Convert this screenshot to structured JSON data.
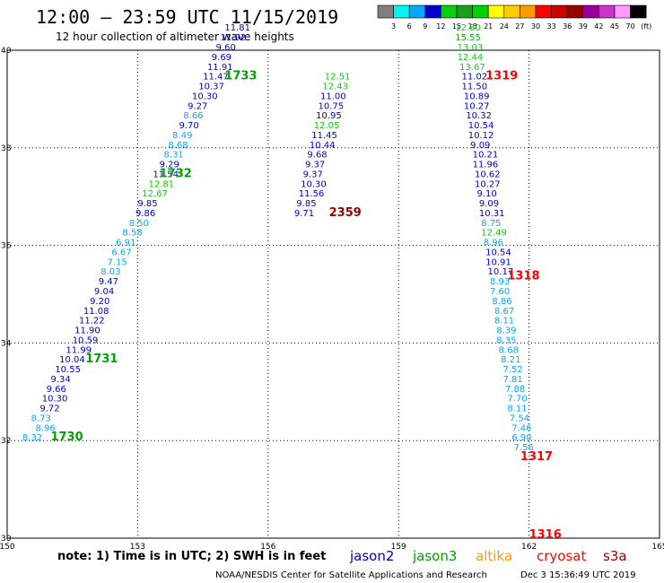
{
  "header": {
    "title": "12:00 – 23:59 UTC 11/15/2019",
    "subtitle": "12 hour collection of altimeter wave heights"
  },
  "legend": {
    "colors": [
      "#7f7f7f",
      "#00f4f4",
      "#00aaff",
      "#0000cd",
      "#0dcd0d",
      "#18a018",
      "#00d000",
      "#ffff00",
      "#ffcc00",
      "#ff9900",
      "#ff0000",
      "#cc0000",
      "#990000",
      "#990099",
      "#cc33cc",
      "#ff99ff",
      "#000000"
    ],
    "labels": [
      "3",
      "6",
      "9",
      "12",
      "15",
      "18",
      "21",
      "24",
      "27",
      "30",
      "33",
      "36",
      "39",
      "42",
      "45",
      "70",
      "(ft)"
    ]
  },
  "footer": {
    "note": "note: 1) Time is in UTC; 2) SWH is in feet",
    "credit": "NOAA/NESDIS Center for Satellite Applications and Research",
    "timestamp": "Dec  3 15:36:49 UTC 2019"
  },
  "satellites": [
    {
      "name": "jason2",
      "color": "#0000cd"
    },
    {
      "name": "jason3",
      "color": "#00a000"
    },
    {
      "name": "altika",
      "color": "#ff9900"
    },
    {
      "name": "cryosat",
      "color": "#ff0000"
    },
    {
      "name": "s3a",
      "color": "#990000"
    }
  ],
  "chart_data": {
    "type": "scatter",
    "xlim": [
      150,
      165
    ],
    "ylim": [
      30,
      40
    ],
    "xticks": [
      "150",
      "153",
      "156",
      "159",
      "162",
      "165"
    ],
    "yticks": [
      "30",
      "32",
      "34",
      "36",
      "38",
      "40"
    ],
    "grid": true,
    "height_colors": {
      "9": "#0000cd",
      "12": "#00aaff",
      "15": "#0dcd0d",
      "18": "#18a018",
      "21": "#00d000"
    },
    "time_labels": [
      {
        "text": "1730",
        "lon": 151.0,
        "lat": 32.0,
        "color": "#00a000"
      },
      {
        "text": "1731",
        "lon": 151.8,
        "lat": 33.6,
        "color": "#00a000"
      },
      {
        "text": "1732",
        "lon": 153.5,
        "lat": 37.4,
        "color": "#00a000"
      },
      {
        "text": "1733",
        "lon": 155.0,
        "lat": 39.4,
        "color": "#00a000"
      },
      {
        "text": "2359",
        "lon": 157.4,
        "lat": 36.6,
        "color": "#990000"
      },
      {
        "text": "1319",
        "lon": 161.0,
        "lat": 39.4,
        "color": "#ff0000"
      },
      {
        "text": "1318",
        "lon": 161.5,
        "lat": 35.3,
        "color": "#ff0000"
      },
      {
        "text": "1317",
        "lon": 161.8,
        "lat": 31.6,
        "color": "#ff0000"
      },
      {
        "text": "1316",
        "lon": 162.0,
        "lat": 30.0,
        "color": "#ff0000"
      }
    ],
    "tracks": [
      {
        "time": "1730-1733",
        "points": [
          {
            "v": "8.32",
            "lon": 150.35,
            "lat": 32.0,
            "c": "12"
          },
          {
            "v": "8.96",
            "lon": 150.65,
            "lat": 32.2,
            "c": "12"
          },
          {
            "v": "8.73",
            "lon": 150.55,
            "lat": 32.4,
            "c": "12"
          },
          {
            "v": "9.72",
            "lon": 150.75,
            "lat": 32.6,
            "c": "9"
          },
          {
            "v": "10.30",
            "lon": 150.8,
            "lat": 32.8,
            "c": "9"
          },
          {
            "v": "9.66",
            "lon": 150.9,
            "lat": 33.0,
            "c": "9"
          },
          {
            "v": "9.34",
            "lon": 151.0,
            "lat": 33.2,
            "c": "9"
          },
          {
            "v": "10.55",
            "lon": 151.1,
            "lat": 33.4,
            "c": "9"
          },
          {
            "v": "10.04",
            "lon": 151.2,
            "lat": 33.6,
            "c": "9"
          },
          {
            "v": "11.99",
            "lon": 151.35,
            "lat": 33.8,
            "c": "9"
          },
          {
            "v": "10.59",
            "lon": 151.5,
            "lat": 34.0,
            "c": "9"
          },
          {
            "v": "11.90",
            "lon": 151.55,
            "lat": 34.2,
            "c": "9"
          },
          {
            "v": "11.22",
            "lon": 151.65,
            "lat": 34.4,
            "c": "9"
          },
          {
            "v": "11.08",
            "lon": 151.75,
            "lat": 34.6,
            "c": "9"
          },
          {
            "v": "9.20",
            "lon": 151.9,
            "lat": 34.8,
            "c": "9"
          },
          {
            "v": "9.04",
            "lon": 152.0,
            "lat": 35.0,
            "c": "9"
          },
          {
            "v": "9.47",
            "lon": 152.1,
            "lat": 35.2,
            "c": "9"
          },
          {
            "v": "8.03",
            "lon": 152.15,
            "lat": 35.4,
            "c": "12"
          },
          {
            "v": "7.15",
            "lon": 152.3,
            "lat": 35.6,
            "c": "12"
          },
          {
            "v": "6.67",
            "lon": 152.4,
            "lat": 35.8,
            "c": "12"
          },
          {
            "v": "6.91",
            "lon": 152.5,
            "lat": 36.0,
            "c": "12"
          },
          {
            "v": "8.58",
            "lon": 152.65,
            "lat": 36.2,
            "c": "12"
          },
          {
            "v": "8.50",
            "lon": 152.8,
            "lat": 36.4,
            "c": "12"
          },
          {
            "v": "9.86",
            "lon": 152.95,
            "lat": 36.6,
            "c": "9"
          },
          {
            "v": "9.85",
            "lon": 153.0,
            "lat": 36.8,
            "c": "9"
          },
          {
            "v": "12.67",
            "lon": 153.1,
            "lat": 37.0,
            "c": "15"
          },
          {
            "v": "12.81",
            "lon": 153.25,
            "lat": 37.2,
            "c": "15"
          },
          {
            "v": "11.54",
            "lon": 153.35,
            "lat": 37.4,
            "c": "9"
          },
          {
            "v": "9.29",
            "lon": 153.5,
            "lat": 37.6,
            "c": "9"
          },
          {
            "v": "8.31",
            "lon": 153.6,
            "lat": 37.8,
            "c": "12"
          },
          {
            "v": "8.68",
            "lon": 153.7,
            "lat": 38.0,
            "c": "12"
          },
          {
            "v": "8.49",
            "lon": 153.8,
            "lat": 38.2,
            "c": "12"
          },
          {
            "v": "9.70",
            "lon": 153.95,
            "lat": 38.4,
            "c": "9"
          },
          {
            "v": "8.66",
            "lon": 154.05,
            "lat": 38.6,
            "c": "12"
          },
          {
            "v": "9.27",
            "lon": 154.15,
            "lat": 38.8,
            "c": "9"
          },
          {
            "v": "10.30",
            "lon": 154.25,
            "lat": 39.0,
            "c": "9"
          },
          {
            "v": "10.37",
            "lon": 154.4,
            "lat": 39.2,
            "c": "9"
          },
          {
            "v": "11.47",
            "lon": 154.5,
            "lat": 39.4,
            "c": "9"
          },
          {
            "v": "11.91",
            "lon": 154.6,
            "lat": 39.6,
            "c": "9"
          },
          {
            "v": "9.69",
            "lon": 154.7,
            "lat": 39.8,
            "c": "9"
          },
          {
            "v": "9.60",
            "lon": 154.8,
            "lat": 40.0,
            "c": "9"
          },
          {
            "v": "11.92",
            "lon": 154.9,
            "lat": 40.2,
            "c": "9"
          },
          {
            "v": "11.81",
            "lon": 155.0,
            "lat": 40.4,
            "c": "9"
          }
        ]
      },
      {
        "time": "2359",
        "points": [
          {
            "v": "9.71",
            "lon": 156.6,
            "lat": 36.6,
            "c": "9"
          },
          {
            "v": "9.85",
            "lon": 156.65,
            "lat": 36.8,
            "c": "9"
          },
          {
            "v": "11.56",
            "lon": 156.7,
            "lat": 37.0,
            "c": "9"
          },
          {
            "v": "10.30",
            "lon": 156.75,
            "lat": 37.2,
            "c": "9"
          },
          {
            "v": "9.37",
            "lon": 156.8,
            "lat": 37.4,
            "c": "9"
          },
          {
            "v": "9.37",
            "lon": 156.85,
            "lat": 37.6,
            "c": "9"
          },
          {
            "v": "9.68",
            "lon": 156.9,
            "lat": 37.8,
            "c": "9"
          },
          {
            "v": "10.44",
            "lon": 156.95,
            "lat": 38.0,
            "c": "9"
          },
          {
            "v": "11.45",
            "lon": 157.0,
            "lat": 38.2,
            "c": "9"
          },
          {
            "v": "12.05",
            "lon": 157.05,
            "lat": 38.4,
            "c": "15"
          },
          {
            "v": "10.95",
            "lon": 157.1,
            "lat": 38.6,
            "c": "9"
          },
          {
            "v": "10.75",
            "lon": 157.15,
            "lat": 38.8,
            "c": "9"
          },
          {
            "v": "11.00",
            "lon": 157.2,
            "lat": 39.0,
            "c": "9"
          },
          {
            "v": "12.43",
            "lon": 157.25,
            "lat": 39.2,
            "c": "15"
          },
          {
            "v": "12.51",
            "lon": 157.3,
            "lat": 39.4,
            "c": "15"
          }
        ]
      },
      {
        "time": "1316-1319",
        "points": [
          {
            "v": "12.80",
            "lon": 160.3,
            "lat": 40.4,
            "c": "15"
          },
          {
            "v": "15.55",
            "lon": 160.3,
            "lat": 40.2,
            "c": "18"
          },
          {
            "v": "13.03",
            "lon": 160.35,
            "lat": 40.0,
            "c": "15"
          },
          {
            "v": "12.44",
            "lon": 160.35,
            "lat": 39.8,
            "c": "15"
          },
          {
            "v": "13.67",
            "lon": 160.4,
            "lat": 39.6,
            "c": "15"
          },
          {
            "v": "11.02",
            "lon": 160.45,
            "lat": 39.4,
            "c": "9"
          },
          {
            "v": "11.50",
            "lon": 160.45,
            "lat": 39.2,
            "c": "9"
          },
          {
            "v": "10.89",
            "lon": 160.5,
            "lat": 39.0,
            "c": "9"
          },
          {
            "v": "10.27",
            "lon": 160.5,
            "lat": 38.8,
            "c": "9"
          },
          {
            "v": "10.32",
            "lon": 160.55,
            "lat": 38.6,
            "c": "9"
          },
          {
            "v": "10.54",
            "lon": 160.6,
            "lat": 38.4,
            "c": "9"
          },
          {
            "v": "10.12",
            "lon": 160.6,
            "lat": 38.2,
            "c": "9"
          },
          {
            "v": "9.09",
            "lon": 160.65,
            "lat": 38.0,
            "c": "9"
          },
          {
            "v": "10.21",
            "lon": 160.7,
            "lat": 37.8,
            "c": "9"
          },
          {
            "v": "11.96",
            "lon": 160.7,
            "lat": 37.6,
            "c": "9"
          },
          {
            "v": "10.62",
            "lon": 160.75,
            "lat": 37.4,
            "c": "9"
          },
          {
            "v": "10.27",
            "lon": 160.75,
            "lat": 37.2,
            "c": "9"
          },
          {
            "v": "9.10",
            "lon": 160.8,
            "lat": 37.0,
            "c": "9"
          },
          {
            "v": "9.09",
            "lon": 160.85,
            "lat": 36.8,
            "c": "9"
          },
          {
            "v": "10.31",
            "lon": 160.85,
            "lat": 36.6,
            "c": "9"
          },
          {
            "v": "8.75",
            "lon": 160.9,
            "lat": 36.4,
            "c": "12"
          },
          {
            "v": "12.49",
            "lon": 160.9,
            "lat": 36.2,
            "c": "15"
          },
          {
            "v": "8.96",
            "lon": 160.95,
            "lat": 36.0,
            "c": "12"
          },
          {
            "v": "10.54",
            "lon": 161.0,
            "lat": 35.8,
            "c": "9"
          },
          {
            "v": "10.91",
            "lon": 161.0,
            "lat": 35.6,
            "c": "9"
          },
          {
            "v": "10.17",
            "lon": 161.05,
            "lat": 35.4,
            "c": "9"
          },
          {
            "v": "8.93",
            "lon": 161.1,
            "lat": 35.2,
            "c": "12"
          },
          {
            "v": "7.60",
            "lon": 161.1,
            "lat": 35.0,
            "c": "12"
          },
          {
            "v": "8.86",
            "lon": 161.15,
            "lat": 34.8,
            "c": "12"
          },
          {
            "v": "8.67",
            "lon": 161.2,
            "lat": 34.6,
            "c": "12"
          },
          {
            "v": "8.11",
            "lon": 161.2,
            "lat": 34.4,
            "c": "12"
          },
          {
            "v": "8.39",
            "lon": 161.25,
            "lat": 34.2,
            "c": "12"
          },
          {
            "v": "8.35",
            "lon": 161.25,
            "lat": 34.0,
            "c": "12"
          },
          {
            "v": "8.68",
            "lon": 161.3,
            "lat": 33.8,
            "c": "12"
          },
          {
            "v": "8.21",
            "lon": 161.35,
            "lat": 33.6,
            "c": "12"
          },
          {
            "v": "7.52",
            "lon": 161.4,
            "lat": 33.4,
            "c": "12"
          },
          {
            "v": "7.81",
            "lon": 161.4,
            "lat": 33.2,
            "c": "12"
          },
          {
            "v": "7.88",
            "lon": 161.45,
            "lat": 33.0,
            "c": "12"
          },
          {
            "v": "7.70",
            "lon": 161.5,
            "lat": 32.8,
            "c": "12"
          },
          {
            "v": "8.11",
            "lon": 161.5,
            "lat": 32.6,
            "c": "12"
          },
          {
            "v": "7.54",
            "lon": 161.55,
            "lat": 32.4,
            "c": "12"
          },
          {
            "v": "7.46",
            "lon": 161.6,
            "lat": 32.2,
            "c": "12"
          },
          {
            "v": "6.90",
            "lon": 161.6,
            "lat": 32.0,
            "c": "12"
          },
          {
            "v": "7.56",
            "lon": 161.65,
            "lat": 31.8,
            "c": "12"
          }
        ]
      }
    ]
  }
}
